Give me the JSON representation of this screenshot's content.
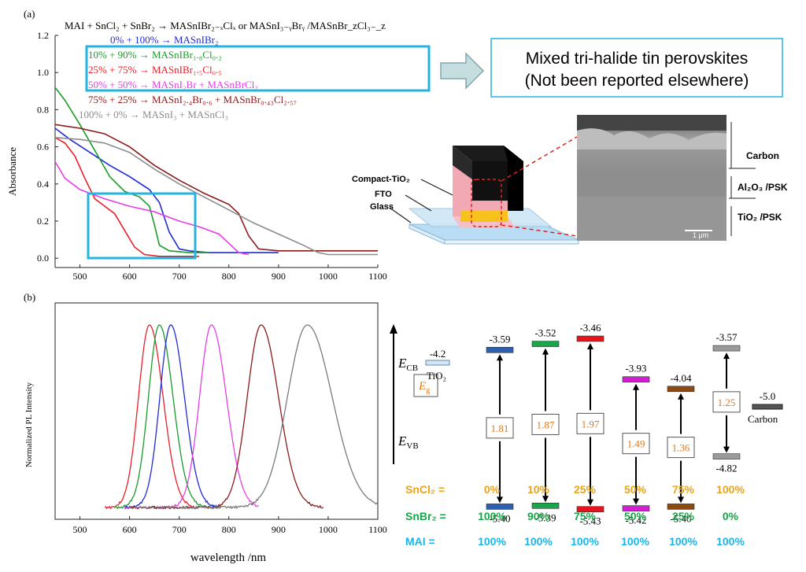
{
  "panel_a": {
    "label": "(a)",
    "equation": "MAI + SnCl₂ + SnBr₂ → MASnIBr₂₋ₓClₓ or MASnI₃₋ᵧBrᵧ /MASnBr_zCl₃₋_z",
    "legend": [
      {
        "text": "0%    + 100% → MASnIBr₂",
        "color": "#1f2bd6"
      },
      {
        "text": "10%  +  90% → MASnIBr₁.₈Cl₀.₂",
        "color": "#1a9a2a"
      },
      {
        "text": "25%  +  75% → MASnIBr₁.₅Cl₀.₅",
        "color": "#e8202a"
      },
      {
        "text": "50%  +  50% → MASnI₂Br + MASnBrCl₂",
        "color": "#e63ee6"
      },
      {
        "text": "75%  +  25% → MASnI₂.₄Br₀.₆ + MASnBr₀.₄₃Cl₂.₅₇",
        "color": "#8a1a1a"
      },
      {
        "text": "100% +   0%  → MASnI₃ + MASnCl₃",
        "color": "#8c8c8c"
      }
    ],
    "callout_line1": "Mixed tri-halide tin perovskites",
    "callout_line2": "(Not been reported elsewhere)",
    "ylabel": "Absorbance"
  },
  "panel_b": {
    "label": "(b)",
    "ylabel": "Normalized PL Intensity",
    "xlabel": "wavelength /nm"
  },
  "device": {
    "compact": "Compact-TiO₂",
    "fto": "FTO",
    "glass": "Glass",
    "carbon": "Carbon",
    "al2o3": "Al₂O₃ /PSK",
    "tio2": "TiO₂ /PSK",
    "scale": "1 μm"
  },
  "energy": {
    "ecb": "E",
    "ecb_sub": "CB",
    "evb": "E",
    "evb_sub": "VB",
    "eg": "E",
    "eg_sub": "g",
    "tio2_val": "-4.2",
    "tio2_label": "TiO₂",
    "carbon_val": "-5.0",
    "carbon_label": "Carbon",
    "columns": [
      {
        "cb": "-3.59",
        "vb": "-5.40",
        "eg": "1.81",
        "color": "#2e5fb0"
      },
      {
        "cb": "-3.52",
        "vb": "-5.39",
        "eg": "1.87",
        "color": "#1aa54a"
      },
      {
        "cb": "-3.46",
        "vb": "-5.43",
        "eg": "1.97",
        "color": "#e8141c"
      },
      {
        "cb": "-3.93",
        "vb": "-5.42",
        "eg": "1.49",
        "color": "#d41ed4"
      },
      {
        "cb": "-4.04",
        "vb": "-5.40",
        "eg": "1.36",
        "color": "#8c4a12"
      },
      {
        "cb": "-3.57",
        "vb": "-4.82",
        "eg": "1.25",
        "color": "#9a9a9a"
      }
    ],
    "sncl2_label": "SnCl₂ =",
    "snbr2_label": "SnBr₂ =",
    "mai_label": "MAI =",
    "sncl2": [
      "0%",
      "10%",
      "25%",
      "50%",
      "75%",
      "100%"
    ],
    "snbr2": [
      "100%",
      "90%",
      "75%",
      "50%",
      "25%",
      "0%"
    ],
    "mai": [
      "100%",
      "100%",
      "100%",
      "100%",
      "100%",
      "100%"
    ]
  },
  "chart_data": [
    {
      "type": "line",
      "ylabel": "Absorbance",
      "xlim": [
        450,
        1100
      ],
      "ylim": [
        -0.05,
        1.2
      ],
      "xticks": [
        500,
        600,
        700,
        800,
        900,
        1000,
        1100
      ],
      "yticks": [
        0.0,
        0.2,
        0.4,
        0.6,
        0.8,
        1.0,
        1.2
      ],
      "series": [
        {
          "color": "#1f2bd6",
          "x": [
            450,
            480,
            520,
            560,
            600,
            640,
            660,
            680,
            700,
            720,
            760,
            800,
            850,
            900
          ],
          "y": [
            0.7,
            0.64,
            0.57,
            0.5,
            0.44,
            0.37,
            0.3,
            0.14,
            0.05,
            0.04,
            0.03,
            0.03,
            0.03,
            0.03
          ]
        },
        {
          "color": "#1a9a2a",
          "x": [
            450,
            470,
            500,
            530,
            560,
            590,
            620,
            640,
            650,
            660,
            680,
            720,
            760
          ],
          "y": [
            0.92,
            0.85,
            0.72,
            0.58,
            0.44,
            0.36,
            0.33,
            0.28,
            0.18,
            0.07,
            0.04,
            0.03,
            0.03
          ]
        },
        {
          "color": "#e8202a",
          "x": [
            450,
            470,
            490,
            510,
            530,
            550,
            570,
            590,
            610,
            630,
            660,
            700,
            740
          ],
          "y": [
            0.65,
            0.62,
            0.55,
            0.43,
            0.32,
            0.28,
            0.24,
            0.15,
            0.06,
            0.02,
            0.01,
            0.01,
            0.01
          ]
        },
        {
          "color": "#e63ee6",
          "x": [
            450,
            470,
            500,
            550,
            600,
            650,
            700,
            740,
            780,
            800,
            820,
            840
          ],
          "y": [
            0.52,
            0.43,
            0.37,
            0.32,
            0.28,
            0.25,
            0.2,
            0.17,
            0.13,
            0.08,
            0.03,
            0.02
          ]
        },
        {
          "color": "#8a1a1a",
          "x": [
            450,
            500,
            550,
            600,
            650,
            700,
            750,
            800,
            820,
            840,
            860,
            900,
            1000,
            1100
          ],
          "y": [
            0.72,
            0.7,
            0.67,
            0.6,
            0.5,
            0.42,
            0.35,
            0.29,
            0.24,
            0.12,
            0.05,
            0.04,
            0.04,
            0.04
          ]
        },
        {
          "color": "#8c8c8c",
          "x": [
            450,
            500,
            550,
            600,
            650,
            700,
            750,
            800,
            850,
            900,
            950,
            980,
            1000,
            1050,
            1100
          ],
          "y": [
            0.65,
            0.64,
            0.62,
            0.57,
            0.48,
            0.4,
            0.33,
            0.26,
            0.19,
            0.13,
            0.07,
            0.03,
            0.02,
            0.02,
            0.02
          ]
        }
      ]
    },
    {
      "type": "line",
      "xlabel": "wavelength /nm",
      "ylabel": "Normalized PL Intensity",
      "xlim": [
        450,
        1100
      ],
      "xticks": [
        500,
        600,
        700,
        800,
        900,
        1000,
        1100
      ],
      "series": [
        {
          "color": "#e8202a",
          "peak": 640,
          "width": 22,
          "start": 550,
          "end": 730
        },
        {
          "color": "#1a9a2a",
          "peak": 660,
          "width": 22,
          "start": 570,
          "end": 760
        },
        {
          "color": "#1f2bd6",
          "peak": 683,
          "width": 22,
          "start": 590,
          "end": 780
        },
        {
          "color": "#e63ee6",
          "peak": 765,
          "width": 24,
          "start": 590,
          "end": 860
        },
        {
          "color": "#8a1a1a",
          "peak": 865,
          "width": 28,
          "start": 600,
          "end": 990
        },
        {
          "color": "#7a7a7a",
          "peak": 958,
          "width": 40,
          "start": 600,
          "end": 1100
        }
      ]
    }
  ]
}
